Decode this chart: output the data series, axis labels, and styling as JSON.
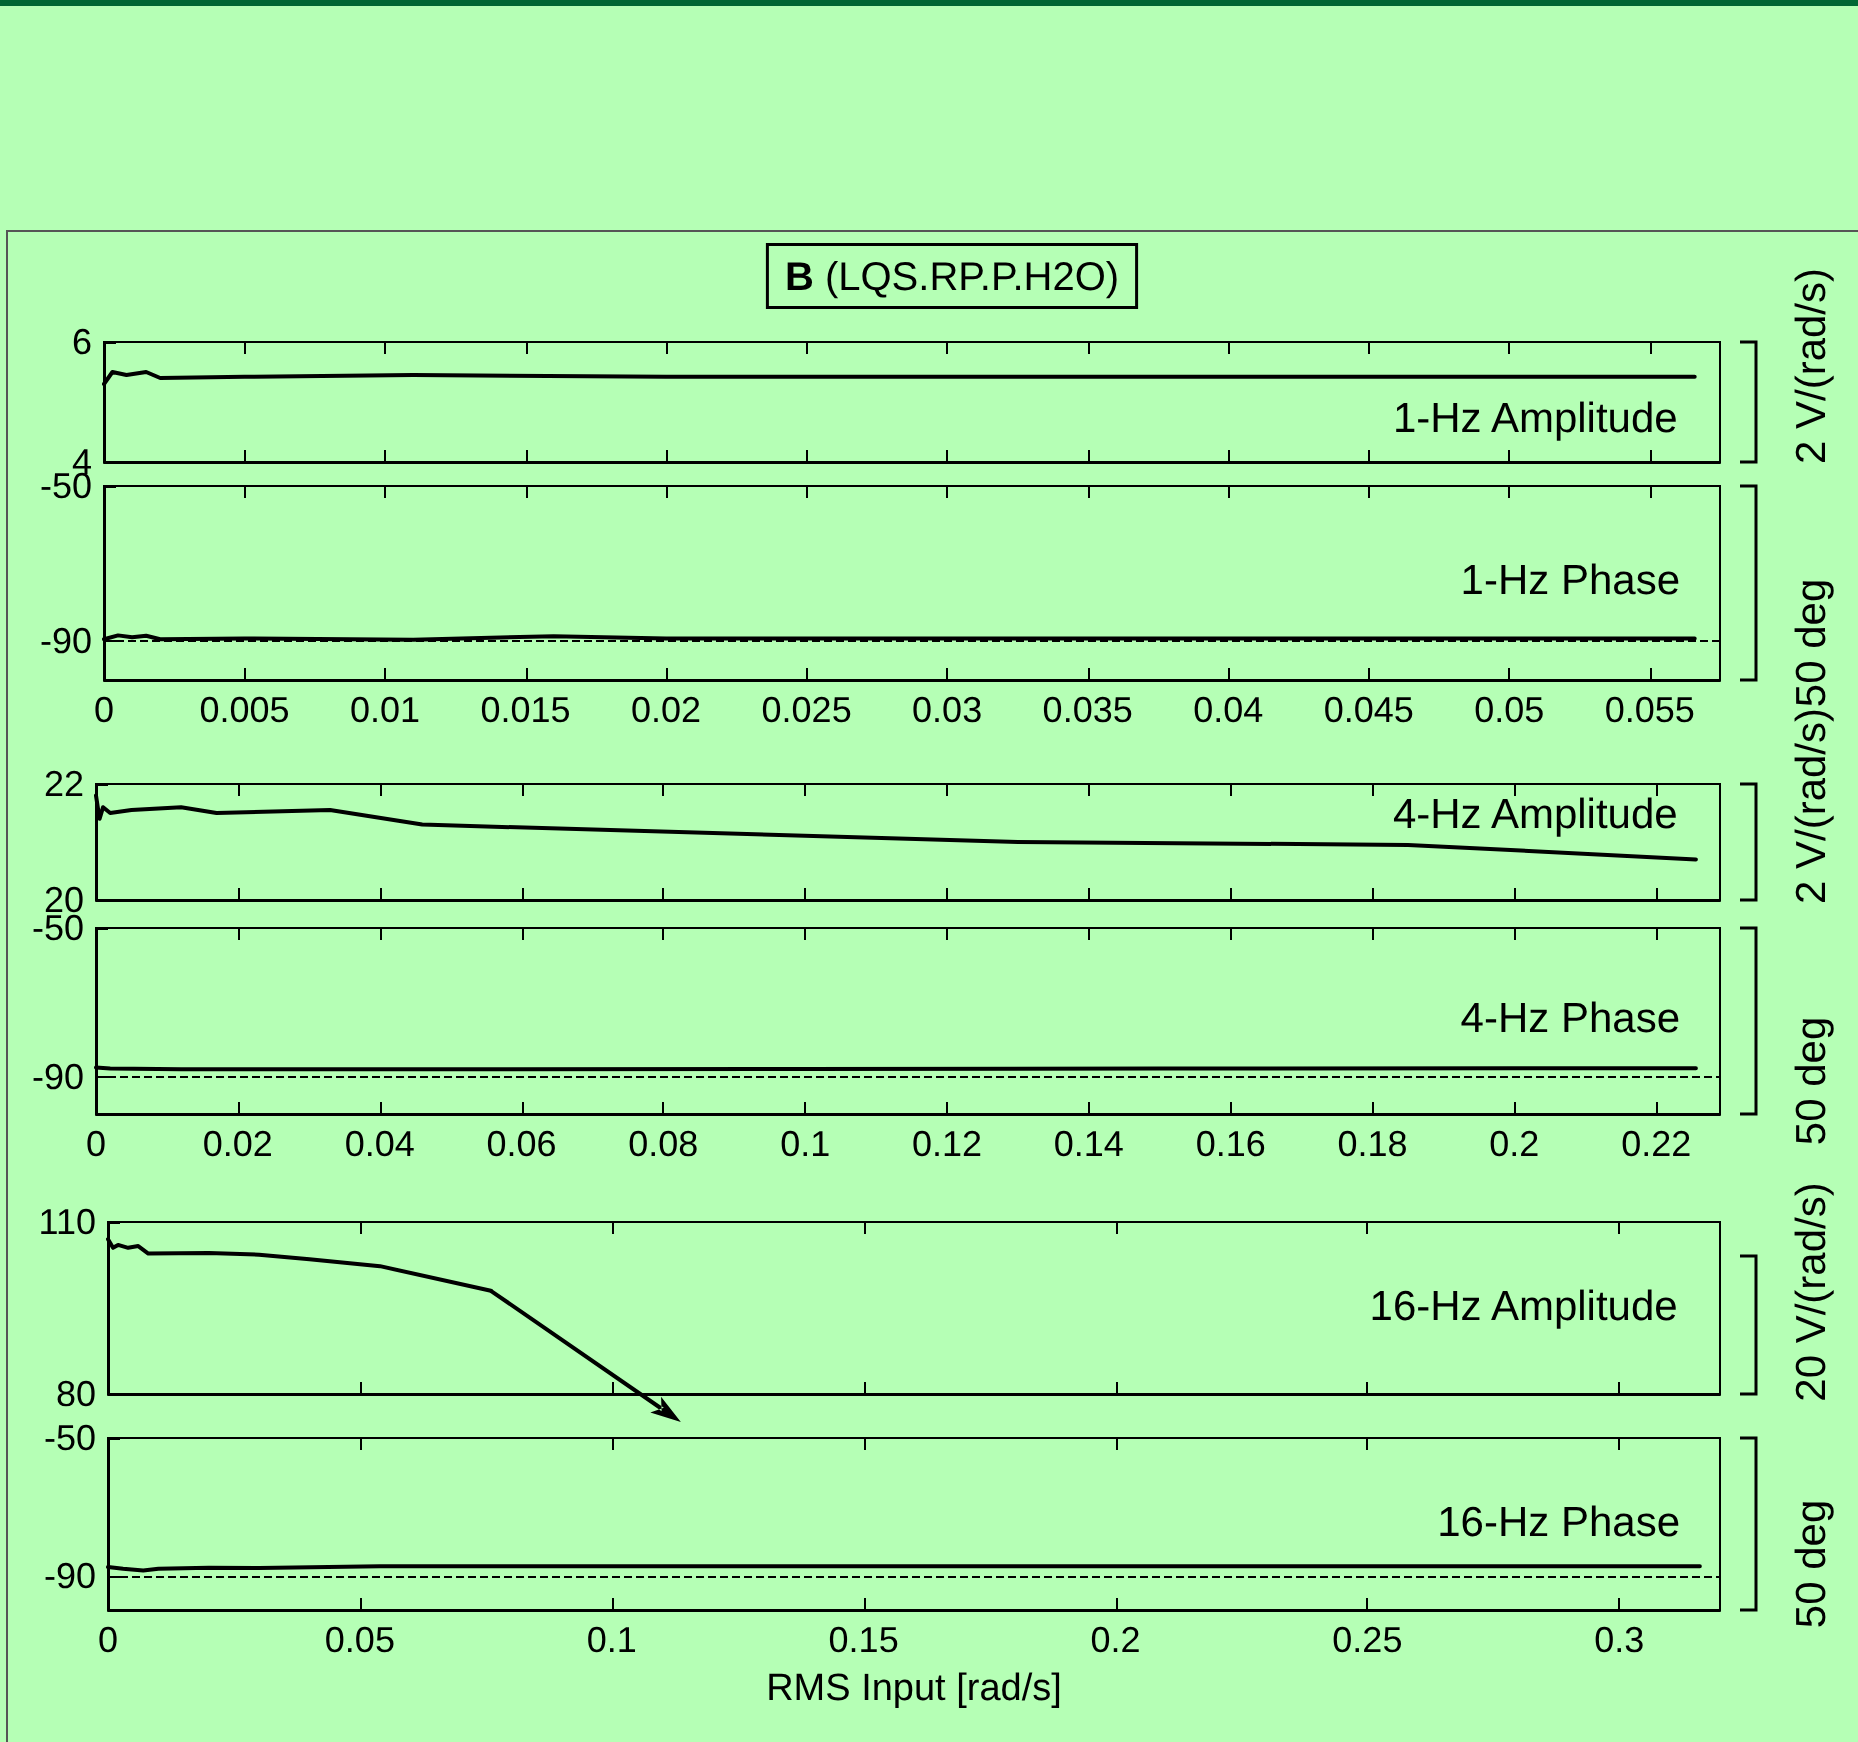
{
  "chart_data": [
    {
      "type": "line",
      "title": "1-Hz Amplitude",
      "annotations": [
        "B (LQS.RP.P.H2O)",
        "2 V/(rad/s)"
      ],
      "tick_labels": "y",
      "marker": "none",
      "xlim": [
        0,
        0.0575
      ],
      "xticks": [
        0,
        0.005,
        0.01,
        0.015,
        0.02,
        0.025,
        0.03,
        0.035,
        0.04,
        0.045,
        0.05,
        0.055
      ],
      "ylim": [
        4,
        6
      ],
      "yticks": [
        4,
        6
      ],
      "x": [
        0,
        0.0003,
        0.0008,
        0.0015,
        0.002,
        0.005,
        0.011,
        0.02,
        0.03,
        0.04,
        0.05,
        0.0566
      ],
      "series": [
        {
          "color": "#000000",
          "values": [
            5.3,
            5.5,
            5.45,
            5.5,
            5.4,
            5.42,
            5.45,
            5.42,
            5.42,
            5.42,
            5.42,
            5.42
          ]
        }
      ]
    },
    {
      "type": "line",
      "title": "1-Hz Phase",
      "annotations": [
        "50 deg"
      ],
      "marker": "none",
      "xlim": [
        0,
        0.0575
      ],
      "xticks": [
        0,
        0.005,
        0.01,
        0.015,
        0.02,
        0.025,
        0.03,
        0.035,
        0.04,
        0.045,
        0.05,
        0.055
      ],
      "ylim": [
        -100,
        -50
      ],
      "yticks": [
        -90,
        -50
      ],
      "x": [
        0,
        0.0005,
        0.001,
        0.0015,
        0.002,
        0.005,
        0.011,
        0.016,
        0.02,
        0.03,
        0.04,
        0.05,
        0.0566
      ],
      "series": [
        {
          "color": "#000000",
          "values": [
            -89.5,
            -88.5,
            -89,
            -88.6,
            -89.5,
            -89.3,
            -89.6,
            -88.7,
            -89.3,
            -89.3,
            -89.3,
            -89.3,
            -89.3
          ]
        }
      ],
      "ref_lines": [
        {
          "axis": "y",
          "value": -90,
          "line_style": "dashed",
          "color": "#000000"
        }
      ]
    },
    {
      "type": "line",
      "title": "4-Hz Amplitude",
      "annotations": [
        "2 V/(rad/s)"
      ],
      "tick_labels": "y",
      "marker": "none",
      "xlim": [
        0,
        0.229
      ],
      "xticks": [
        0,
        0.02,
        0.04,
        0.06,
        0.08,
        0.1,
        0.12,
        0.14,
        0.16,
        0.18,
        0.2,
        0.22
      ],
      "ylim": [
        20,
        22
      ],
      "yticks": [
        20,
        22
      ],
      "x": [
        0,
        0.0005,
        0.001,
        0.002,
        0.005,
        0.012,
        0.017,
        0.033,
        0.046,
        0.13,
        0.185,
        0.2256
      ],
      "series": [
        {
          "color": "#000000",
          "values": [
            21.8,
            21.4,
            21.6,
            21.5,
            21.55,
            21.6,
            21.5,
            21.55,
            21.3,
            21.0,
            20.95,
            20.7
          ]
        }
      ]
    },
    {
      "type": "line",
      "title": "4-Hz Phase",
      "annotations": [
        "50 deg"
      ],
      "marker": "none",
      "xlim": [
        0,
        0.229
      ],
      "xticks": [
        0,
        0.02,
        0.04,
        0.06,
        0.08,
        0.1,
        0.12,
        0.14,
        0.16,
        0.18,
        0.2,
        0.22
      ],
      "ylim": [
        -100,
        -50
      ],
      "yticks": [
        -90,
        -50
      ],
      "x": [
        0,
        0.002,
        0.012,
        0.05,
        0.1,
        0.15,
        0.2,
        0.2256
      ],
      "series": [
        {
          "color": "#000000",
          "values": [
            -87.5,
            -87.8,
            -88,
            -88,
            -87.9,
            -87.8,
            -87.7,
            -87.7
          ]
        }
      ],
      "ref_lines": [
        {
          "axis": "y",
          "value": -90,
          "line_style": "dashed",
          "color": "#000000"
        }
      ]
    },
    {
      "type": "line",
      "title": "16-Hz Amplitude",
      "annotations": [
        "20 V/(rad/s)"
      ],
      "tick_labels": "y",
      "marker": "none",
      "xlim": [
        0,
        0.32
      ],
      "xticks": [
        0,
        0.05,
        0.1,
        0.15,
        0.2,
        0.25,
        0.3
      ],
      "ylim": [
        80,
        110
      ],
      "yticks": [
        80,
        110
      ],
      "x": [
        0,
        0.001,
        0.002,
        0.004,
        0.006,
        0.008,
        0.02,
        0.03,
        0.04,
        0.054,
        0.076
      ],
      "series": [
        {
          "color": "#000000",
          "values": [
            107,
            105.5,
            106,
            105.5,
            105.8,
            104.5,
            104.6,
            104.3,
            103.5,
            102.3,
            98
          ]
        }
      ]
    },
    {
      "type": "line",
      "title": "16-Hz Phase",
      "xlabel": "RMS Input [rad/s]",
      "annotations": [
        "50 deg"
      ],
      "marker": "none",
      "xlim": [
        0,
        0.32
      ],
      "xticks": [
        0,
        0.05,
        0.1,
        0.15,
        0.2,
        0.25,
        0.3
      ],
      "ylim": [
        -100,
        -50
      ],
      "yticks": [
        -90,
        -50
      ],
      "x": [
        0,
        0.003,
        0.007,
        0.01,
        0.02,
        0.03,
        0.054,
        0.1,
        0.2,
        0.316
      ],
      "series": [
        {
          "color": "#000000",
          "values": [
            -87.5,
            -88,
            -88.5,
            -88,
            -87.7,
            -87.8,
            -87.3,
            -87.3,
            -87.3,
            -87.3
          ]
        }
      ],
      "ref_lines": [
        {
          "axis": "y",
          "value": -90,
          "line_style": "dashed",
          "color": "#000000"
        }
      ]
    }
  ]
}
